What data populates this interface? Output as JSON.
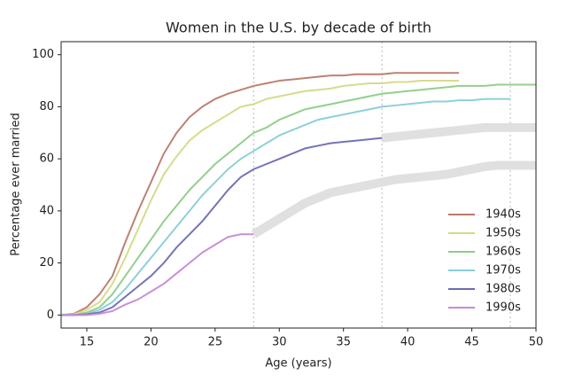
{
  "chart_data": {
    "type": "line",
    "title": "Women in the U.S. by decade of birth",
    "x_label": "Age (years)",
    "y_label": "Percentage ever married",
    "x": [
      13,
      14,
      15,
      16,
      17,
      18,
      19,
      20,
      21,
      22,
      23,
      24,
      25,
      26,
      27,
      28,
      29,
      30,
      31,
      32,
      33,
      34,
      35,
      36,
      37,
      38,
      39,
      40,
      41,
      42,
      43,
      44,
      45,
      46,
      47,
      48,
      49,
      50
    ],
    "xlim": [
      13,
      50
    ],
    "ylim": [
      -5,
      105
    ],
    "xticks": [
      15,
      20,
      25,
      30,
      35,
      40,
      45,
      50
    ],
    "yticks": [
      0,
      20,
      40,
      60,
      80,
      100
    ],
    "vlines": [
      28,
      38,
      48
    ],
    "legend": "lower right",
    "series": [
      {
        "name": "1940s",
        "color": "#b97a6c",
        "values": [
          0,
          0.5,
          3,
          8,
          15,
          28,
          40,
          51,
          62,
          70,
          76,
          80,
          83,
          85,
          86.5,
          88,
          89,
          90,
          90.5,
          91,
          91.5,
          92,
          92,
          92.5,
          92.5,
          92.5,
          93,
          93,
          93,
          93,
          93,
          93,
          null,
          null,
          null,
          null,
          null,
          null
        ]
      },
      {
        "name": "1950s",
        "color": "#d4da86",
        "values": [
          0,
          0.3,
          2,
          5,
          12,
          22,
          33,
          44,
          54,
          61,
          67,
          71,
          74,
          77,
          80,
          81,
          83,
          84,
          85,
          86,
          86.5,
          87,
          88,
          88.5,
          89,
          89,
          89.5,
          89.5,
          90,
          90,
          90,
          90,
          null,
          null,
          null,
          null,
          null,
          null
        ]
      },
      {
        "name": "1960s",
        "color": "#8ccd87",
        "values": [
          0,
          0,
          1,
          3,
          8,
          15,
          22,
          29,
          36,
          42,
          48,
          53,
          58,
          62,
          66,
          70,
          72,
          75,
          77,
          79,
          80,
          81,
          82,
          83,
          84,
          85,
          85.5,
          86,
          86.5,
          87,
          87.5,
          88,
          88,
          88,
          88.5,
          88.5,
          88.5,
          88.5
        ]
      },
      {
        "name": "1970s",
        "color": "#88cdd6",
        "values": [
          0,
          0,
          0.5,
          2,
          5,
          10,
          16,
          22,
          28,
          34,
          40,
          46,
          51,
          56,
          60,
          63,
          66,
          69,
          71,
          73,
          75,
          76,
          77,
          78,
          79,
          80,
          80.5,
          81,
          81.5,
          82,
          82,
          82.5,
          82.5,
          83,
          83,
          83,
          null,
          null
        ]
      },
      {
        "name": "1980s",
        "color": "#6c6cb4",
        "values": [
          0,
          0,
          0.3,
          1,
          3,
          7,
          11,
          15,
          20,
          26,
          31,
          36,
          42,
          48,
          53,
          56,
          58,
          60,
          62,
          64,
          65,
          66,
          66.5,
          67,
          67.5,
          68,
          null,
          null,
          null,
          null,
          null,
          null,
          null,
          null,
          null,
          null,
          null,
          null
        ]
      },
      {
        "name": "1990s",
        "color": "#c68ad6",
        "values": [
          0,
          0,
          0,
          0.5,
          1.5,
          4,
          6,
          9,
          12,
          16,
          20,
          24,
          27,
          30,
          31,
          31,
          null,
          null,
          null,
          null,
          null,
          null,
          null,
          null,
          null,
          null,
          null,
          null,
          null,
          null,
          null,
          null,
          null,
          null,
          null,
          null,
          null,
          null
        ]
      },
      {
        "color": "#e0e0e0",
        "values": [
          null,
          null,
          null,
          null,
          null,
          null,
          null,
          null,
          null,
          null,
          null,
          null,
          null,
          null,
          null,
          null,
          null,
          null,
          null,
          null,
          null,
          null,
          null,
          null,
          null,
          68,
          68.5,
          69,
          69.5,
          70,
          70.5,
          71,
          71.5,
          72,
          72,
          72,
          72,
          72
        ]
      },
      {
        "color": "#e0e0e0",
        "values": [
          null,
          null,
          null,
          null,
          null,
          null,
          null,
          null,
          null,
          null,
          null,
          null,
          null,
          null,
          null,
          31,
          34,
          37,
          40,
          43,
          45,
          47,
          48,
          49,
          50,
          51,
          52,
          52.5,
          53,
          53.5,
          54,
          55,
          56,
          57,
          57.5,
          57.5,
          57.5,
          57.5
        ]
      }
    ]
  }
}
